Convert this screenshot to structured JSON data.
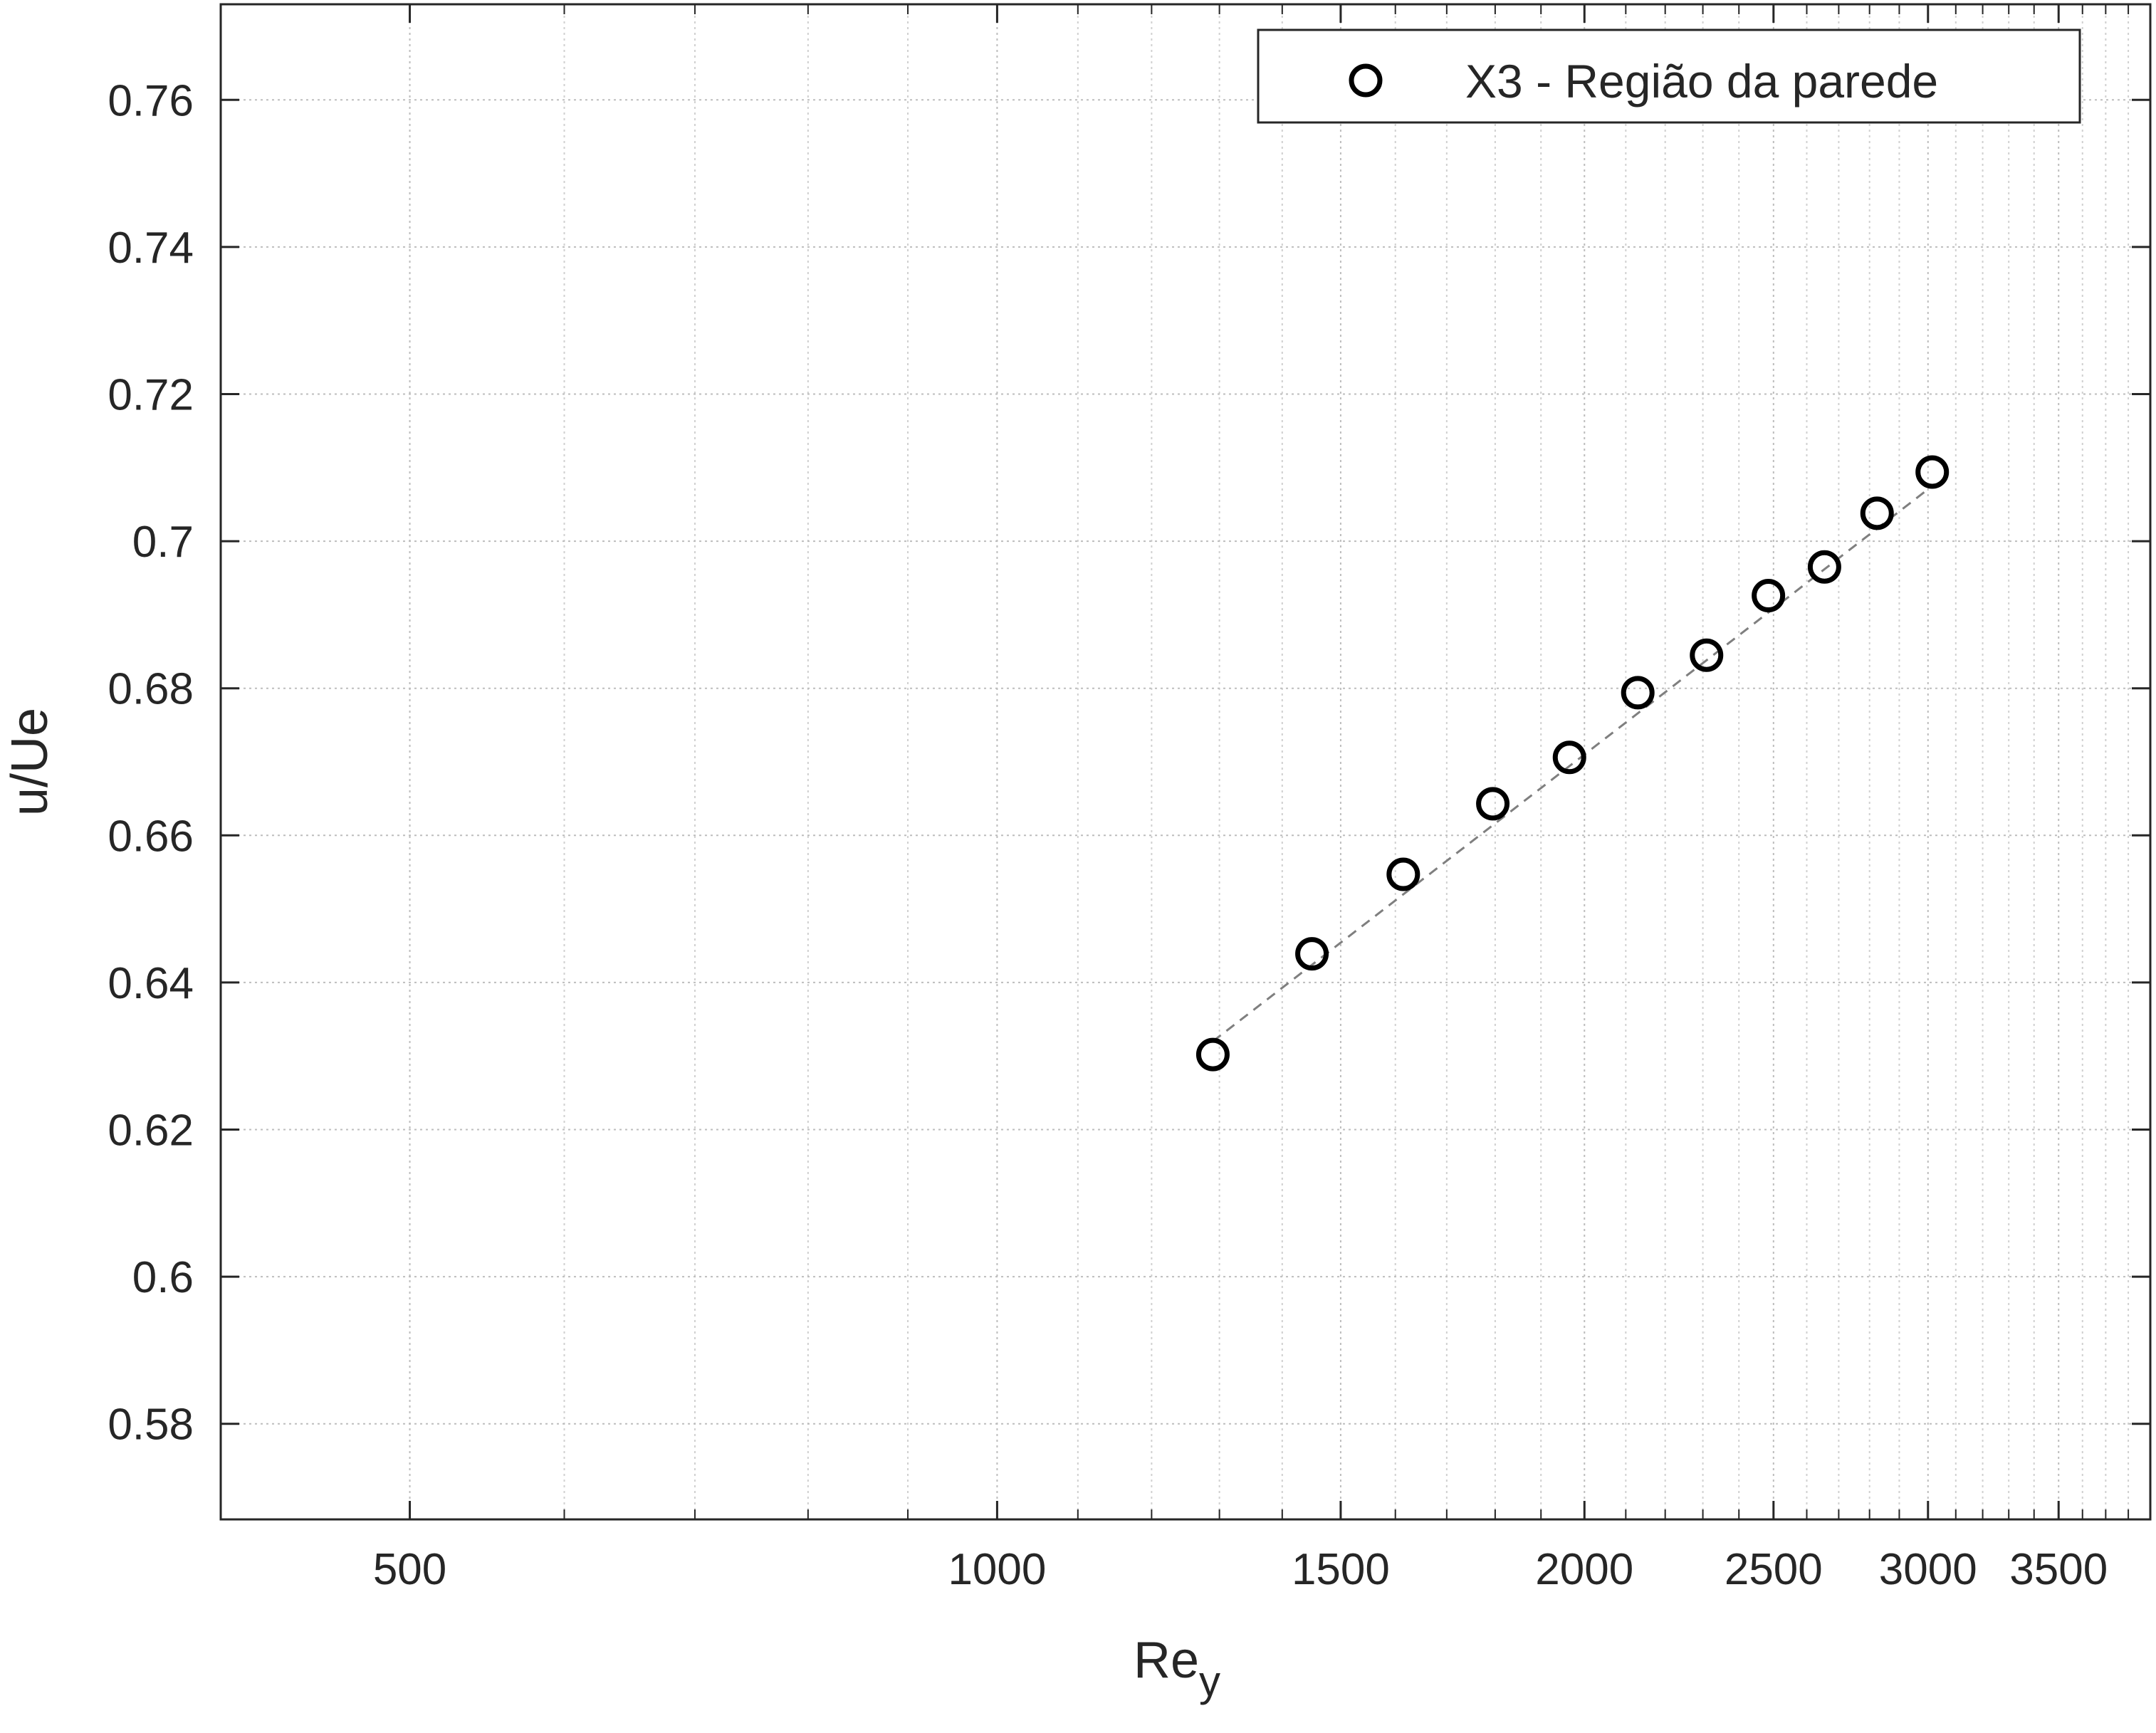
{
  "chart_data": {
    "type": "scatter",
    "xlabel": "Re",
    "xlabel_subscript": "y",
    "ylabel": "u/Ue",
    "x_scale": "log",
    "xlim": [
      400,
      3900
    ],
    "ylim": [
      0.567,
      0.773
    ],
    "grid": true,
    "minor_grid": true,
    "legend_position": "top-right",
    "x_tick_values": [
      500,
      1000,
      1500,
      2000,
      2500,
      3000,
      3500
    ],
    "x_tick_labels": [
      "500",
      "1000",
      "1500",
      "2000",
      "2500",
      "3000",
      "3500"
    ],
    "x_minor_ticks": [
      400,
      600,
      700,
      800,
      900,
      1100,
      1200,
      1300,
      1400,
      1600,
      1700,
      1800,
      1900,
      2100,
      2200,
      2300,
      2400,
      2600,
      2700,
      2800,
      2900,
      3100,
      3200,
      3300,
      3400,
      3600,
      3700,
      3800,
      3900
    ],
    "y_tick_values": [
      0.58,
      0.6,
      0.62,
      0.64,
      0.66,
      0.68,
      0.7,
      0.72,
      0.74,
      0.76
    ],
    "y_tick_labels": [
      "0.58",
      "0.6",
      "0.62",
      "0.64",
      "0.66",
      "0.68",
      "0.7",
      "0.72",
      "0.74",
      "0.76"
    ],
    "series": [
      {
        "name": "X3 - Região da parede",
        "marker": "circle-open",
        "color": "#000000",
        "x": [
          1290,
          1450,
          1615,
          1795,
          1965,
          2130,
          2310,
          2485,
          2655,
          2825,
          3015
        ],
        "y": [
          0.6302,
          0.6439,
          0.6547,
          0.6643,
          0.6706,
          0.6794,
          0.6845,
          0.6926,
          0.6965,
          0.7038,
          0.7094
        ]
      },
      {
        "name": "",
        "line_style": "dashed",
        "color": "#7f7f7f",
        "x": [
          1290,
          3015
        ],
        "y": [
          0.632,
          0.7075
        ]
      }
    ]
  }
}
